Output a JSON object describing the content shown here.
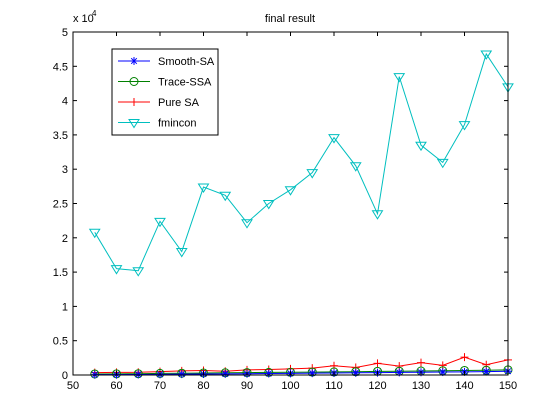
{
  "chart_data": {
    "type": "line",
    "title": "final result",
    "xlabel": "",
    "ylabel": "",
    "y_multiplier_label": "x 10",
    "y_multiplier_exponent": "4",
    "xlim": [
      50,
      150
    ],
    "ylim": [
      0,
      50000
    ],
    "x_ticks": [
      "50",
      "60",
      "70",
      "80",
      "90",
      "100",
      "110",
      "120",
      "130",
      "140",
      "150"
    ],
    "y_ticks": [
      "0",
      "0.5",
      "1",
      "1.5",
      "2",
      "2.5",
      "3",
      "3.5",
      "4",
      "4.5",
      "5"
    ],
    "grid": false,
    "legend_position": "top-left",
    "x": [
      55,
      60,
      65,
      70,
      75,
      80,
      85,
      90,
      95,
      100,
      105,
      110,
      115,
      120,
      125,
      130,
      135,
      140,
      145,
      150
    ],
    "series": [
      {
        "name": "Smooth-SA",
        "color": "#0000ff",
        "marker": "star",
        "values": [
          50,
          60,
          80,
          100,
          130,
          150,
          170,
          190,
          220,
          240,
          270,
          290,
          320,
          350,
          380,
          400,
          430,
          460,
          500,
          550
        ]
      },
      {
        "name": "Trace-SSA",
        "color": "#008000",
        "marker": "circle",
        "values": [
          150,
          170,
          190,
          230,
          260,
          300,
          320,
          350,
          380,
          400,
          420,
          450,
          480,
          530,
          550,
          580,
          620,
          660,
          700,
          750
        ]
      },
      {
        "name": "Pure SA",
        "color": "#ff0000",
        "marker": "plus",
        "values": [
          350,
          380,
          400,
          500,
          600,
          650,
          550,
          750,
          800,
          900,
          1000,
          1350,
          1100,
          1700,
          1300,
          1800,
          1400,
          2600,
          1500,
          2200
        ]
      },
      {
        "name": "fmincon",
        "color": "#00bfbf",
        "marker": "triangle-down",
        "values": [
          20800,
          15500,
          15200,
          22400,
          18000,
          27400,
          26200,
          22200,
          25000,
          27000,
          29500,
          34600,
          30500,
          23500,
          43500,
          33500,
          31000,
          36500,
          46800,
          42000
        ]
      }
    ]
  }
}
